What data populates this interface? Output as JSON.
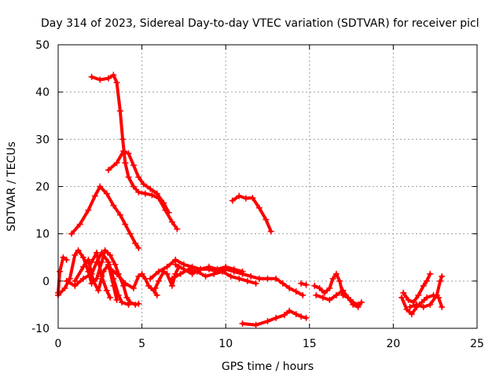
{
  "chart_data": {
    "type": "scatter",
    "title": "Day 314 of 2023, Sidereal Day-to-day VTEC variation (SDTVAR) for receiver picl",
    "xlabel": "GPS time / hours",
    "ylabel": "SDTVAR / TECUs",
    "xlim": [
      0,
      25
    ],
    "ylim": [
      -10,
      50
    ],
    "xticks": [
      "0",
      "5",
      "10",
      "15",
      "20",
      "25"
    ],
    "yticks": [
      "-10",
      "0",
      "10",
      "20",
      "30",
      "40",
      "50"
    ],
    "grid": true,
    "marker": "+",
    "series": [
      {
        "name": "SDTVAR",
        "color": "#ff0000",
        "tracks": [
          [
            [
              2.0,
              43.2
            ],
            [
              2.5,
              42.6
            ],
            [
              3.0,
              42.9
            ],
            [
              3.3,
              43.6
            ],
            [
              3.5,
              42.0
            ],
            [
              3.7,
              36.0
            ],
            [
              3.85,
              30.0
            ],
            [
              4.0,
              25.0
            ],
            [
              4.2,
              22.0
            ],
            [
              4.5,
              20.0
            ],
            [
              4.8,
              18.8
            ],
            [
              5.2,
              18.5
            ],
            [
              5.6,
              18.2
            ],
            [
              6.0,
              17.5
            ],
            [
              6.4,
              15.0
            ],
            [
              6.8,
              12.5
            ],
            [
              7.1,
              11.0
            ]
          ],
          [
            [
              3.0,
              23.5
            ],
            [
              3.5,
              25.0
            ],
            [
              3.9,
              27.5
            ],
            [
              4.2,
              27.0
            ],
            [
              4.5,
              24.5
            ],
            [
              4.8,
              22.0
            ],
            [
              5.1,
              20.5
            ],
            [
              5.5,
              19.5
            ],
            [
              5.9,
              18.5
            ],
            [
              6.3,
              16.5
            ],
            [
              6.6,
              14.5
            ]
          ],
          [
            [
              0.8,
              10.0
            ],
            [
              1.3,
              12.0
            ],
            [
              1.8,
              15.0
            ],
            [
              2.2,
              18.0
            ],
            [
              2.5,
              20.0
            ],
            [
              2.9,
              18.5
            ],
            [
              3.3,
              16.0
            ],
            [
              3.7,
              14.0
            ],
            [
              4.0,
              12.0
            ],
            [
              4.3,
              10.0
            ],
            [
              4.6,
              8.0
            ],
            [
              4.8,
              7.0
            ]
          ],
          [
            [
              10.4,
              17.0
            ],
            [
              10.8,
              18.0
            ],
            [
              11.2,
              17.5
            ],
            [
              11.6,
              17.6
            ],
            [
              12.0,
              15.5
            ],
            [
              12.4,
              13.0
            ],
            [
              12.7,
              10.5
            ]
          ],
          [
            [
              11.0,
              -9.0
            ],
            [
              11.8,
              -9.3
            ],
            [
              12.5,
              -8.5
            ],
            [
              13.0,
              -7.8
            ],
            [
              13.5,
              -7.2
            ],
            [
              13.8,
              -6.3
            ],
            [
              14.2,
              -7.0
            ],
            [
              14.5,
              -7.5
            ],
            [
              14.8,
              -7.8
            ]
          ],
          [
            [
              0.0,
              -2.5
            ],
            [
              0.1,
              2.0
            ],
            [
              0.3,
              5.0
            ],
            [
              0.5,
              4.5
            ]
          ],
          [
            [
              0.0,
              -3.0
            ],
            [
              0.4,
              -1.5
            ],
            [
              0.7,
              0.5
            ],
            [
              1.0,
              5.5
            ],
            [
              1.2,
              6.5
            ],
            [
              1.5,
              5.0
            ],
            [
              1.8,
              2.0
            ],
            [
              2.0,
              -0.5
            ],
            [
              2.3,
              0.5
            ],
            [
              2.6,
              4.0
            ],
            [
              2.8,
              6.5
            ],
            [
              3.1,
              5.5
            ],
            [
              3.4,
              3.5
            ],
            [
              3.6,
              1.5
            ],
            [
              3.9,
              -1.0
            ],
            [
              4.1,
              -3.5
            ],
            [
              4.3,
              -4.5
            ],
            [
              4.6,
              -5.0
            ],
            [
              4.8,
              -4.8
            ]
          ],
          [
            [
              0.5,
              0.0
            ],
            [
              1.0,
              -1.0
            ],
            [
              1.5,
              0.5
            ],
            [
              2.0,
              1.5
            ],
            [
              2.3,
              4.0
            ],
            [
              2.6,
              6.0
            ],
            [
              3.0,
              4.0
            ],
            [
              3.3,
              0.5
            ],
            [
              3.6,
              -3.0
            ],
            [
              3.8,
              -4.5
            ],
            [
              4.2,
              -5.0
            ]
          ],
          [
            [
              1.0,
              0.0
            ],
            [
              1.5,
              3.0
            ],
            [
              1.8,
              4.5
            ],
            [
              2.1,
              0.0
            ],
            [
              2.4,
              -2.0
            ],
            [
              2.7,
              2.0
            ],
            [
              3.0,
              3.5
            ],
            [
              3.3,
              -1.0
            ],
            [
              3.5,
              -4.0
            ]
          ],
          [
            [
              2.0,
              4.0
            ],
            [
              2.3,
              6.0
            ],
            [
              2.6,
              1.0
            ],
            [
              2.9,
              -2.0
            ],
            [
              3.1,
              -3.5
            ]
          ],
          [
            [
              3.0,
              3.0
            ],
            [
              3.5,
              1.5
            ],
            [
              4.0,
              -0.5
            ],
            [
              4.5,
              -1.5
            ],
            [
              4.8,
              1.0
            ],
            [
              5.0,
              1.5
            ],
            [
              5.2,
              0.5
            ],
            [
              5.4,
              -1.0
            ],
            [
              5.7,
              -2.0
            ],
            [
              5.9,
              -3.0
            ]
          ],
          [
            [
              5.8,
              -1.5
            ],
            [
              6.0,
              0.0
            ],
            [
              6.3,
              2.0
            ],
            [
              6.5,
              1.5
            ],
            [
              6.8,
              -1.0
            ],
            [
              7.0,
              1.5
            ],
            [
              7.2,
              3.0
            ]
          ],
          [
            [
              5.5,
              0.5
            ],
            [
              6.0,
              2.0
            ],
            [
              6.5,
              3.0
            ],
            [
              7.0,
              4.5
            ],
            [
              7.5,
              3.5
            ],
            [
              8.0,
              3.0
            ],
            [
              8.5,
              2.5
            ],
            [
              9.0,
              2.5
            ],
            [
              9.5,
              2.0
            ],
            [
              10.0,
              2.5
            ],
            [
              10.5,
              2.0
            ],
            [
              11.0,
              1.5
            ],
            [
              11.5,
              1.0
            ],
            [
              12.0,
              0.5
            ],
            [
              12.5,
              0.5
            ],
            [
              13.0,
              0.5
            ],
            [
              13.4,
              -0.5
            ],
            [
              13.8,
              -1.5
            ],
            [
              14.2,
              -2.2
            ],
            [
              14.6,
              -3.0
            ]
          ],
          [
            [
              6.8,
              0.5
            ],
            [
              7.3,
              1.5
            ],
            [
              7.8,
              2.5
            ],
            [
              8.3,
              2.0
            ],
            [
              8.8,
              1.0
            ],
            [
              9.3,
              1.5
            ],
            [
              9.8,
              2.0
            ],
            [
              10.3,
              1.0
            ],
            [
              10.8,
              0.5
            ],
            [
              11.3,
              0.0
            ],
            [
              11.8,
              -0.5
            ]
          ],
          [
            [
              7.0,
              3.5
            ],
            [
              7.5,
              2.5
            ],
            [
              8.0,
              1.5
            ],
            [
              8.5,
              2.5
            ],
            [
              9.0,
              3.0
            ],
            [
              9.5,
              2.5
            ],
            [
              10.0,
              3.0
            ],
            [
              10.5,
              2.5
            ],
            [
              11.0,
              2.0
            ]
          ],
          [
            [
              14.5,
              -0.5
            ],
            [
              14.8,
              -0.8
            ]
          ],
          [
            [
              15.3,
              -1.0
            ],
            [
              15.6,
              -1.5
            ],
            [
              15.9,
              -2.5
            ],
            [
              16.2,
              -1.5
            ],
            [
              16.4,
              0.5
            ],
            [
              16.6,
              1.5
            ],
            [
              16.8,
              0.0
            ],
            [
              17.0,
              -3.0
            ],
            [
              17.3,
              -3.5
            ],
            [
              17.6,
              -4.5
            ],
            [
              17.9,
              -5.0
            ]
          ],
          [
            [
              15.4,
              -3.0
            ],
            [
              15.8,
              -3.5
            ],
            [
              16.2,
              -4.0
            ],
            [
              16.6,
              -3.0
            ],
            [
              17.0,
              -2.0
            ],
            [
              17.3,
              -3.5
            ],
            [
              17.6,
              -5.0
            ],
            [
              17.9,
              -5.5
            ],
            [
              18.1,
              -4.5
            ]
          ],
          [
            [
              20.6,
              -2.5
            ],
            [
              20.9,
              -4.0
            ],
            [
              21.2,
              -4.5
            ],
            [
              21.5,
              -3.0
            ],
            [
              21.8,
              -1.0
            ],
            [
              22.0,
              0.0
            ],
            [
              22.2,
              1.5
            ]
          ],
          [
            [
              20.5,
              -3.5
            ],
            [
              20.8,
              -6.0
            ],
            [
              21.1,
              -7.0
            ],
            [
              21.4,
              -5.5
            ],
            [
              21.7,
              -4.5
            ],
            [
              22.0,
              -3.5
            ],
            [
              22.4,
              -3.0
            ],
            [
              22.7,
              -3.5
            ],
            [
              22.9,
              -5.5
            ]
          ],
          [
            [
              21.0,
              -5.5
            ],
            [
              21.4,
              -5.0
            ],
            [
              21.8,
              -5.5
            ],
            [
              22.2,
              -5.0
            ],
            [
              22.6,
              -3.0
            ],
            [
              22.8,
              0.0
            ],
            [
              22.9,
              1.0
            ]
          ]
        ]
      }
    ]
  }
}
